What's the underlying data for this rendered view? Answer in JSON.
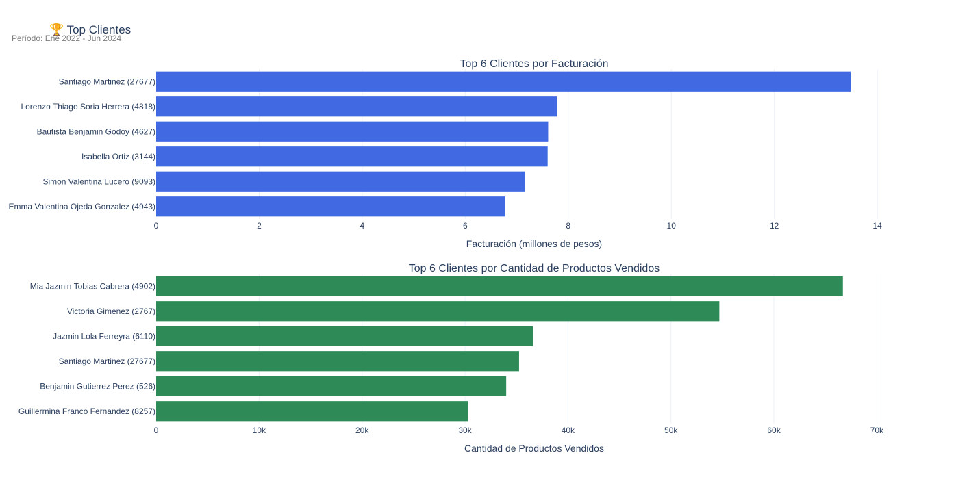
{
  "header": {
    "icon": "trophy-icon",
    "icon_glyph": "🏆",
    "title": "Top Clientes",
    "subtitle": "Período: Ene 2022 - Jun 2024"
  },
  "chart_data": [
    {
      "type": "bar",
      "orientation": "horizontal",
      "title": "Top 6 Clientes por Facturación",
      "xlabel": "Facturación (millones de pesos)",
      "ylabel": "",
      "color": "#4169e1",
      "categories": [
        "Santiago Martinez (27677)",
        "Lorenzo Thiago Soria Herrera (4818)",
        "Bautista Benjamin Godoy (4627)",
        "Isabella Ortiz (3144)",
        "Simon Valentina Lucero (9093)",
        "Emma Valentina Ojeda Gonzalez (4943)"
      ],
      "values": [
        13.48,
        7.78,
        7.61,
        7.6,
        7.16,
        6.78
      ],
      "xlim": [
        0,
        14.65
      ],
      "xticks": [
        0,
        2,
        4,
        6,
        8,
        10,
        12,
        14
      ],
      "xtick_labels": [
        "0",
        "2",
        "4",
        "6",
        "8",
        "10",
        "12",
        "14"
      ],
      "grid": true
    },
    {
      "type": "bar",
      "orientation": "horizontal",
      "title": "Top 6 Clientes por Cantidad de Productos Vendidos",
      "xlabel": "Cantidad de Productos Vendidos",
      "ylabel": "",
      "color": "#2e8b57",
      "categories": [
        "Mia Jazmin Tobias Cabrera (4902)",
        "Victoria Gimenez (2767)",
        "Jazmin Lola Ferreyra (6110)",
        "Santiago Martinez (27677)",
        "Benjamin Gutierrez Perez (526)",
        "Guillermina Franco Fernandez (8257)"
      ],
      "values": [
        66700,
        54700,
        36600,
        35250,
        34000,
        30300
      ],
      "xlim": [
        0,
        73300
      ],
      "xticks": [
        0,
        10000,
        20000,
        30000,
        40000,
        50000,
        60000,
        70000
      ],
      "xtick_labels": [
        "0",
        "10k",
        "20k",
        "30k",
        "40k",
        "50k",
        "60k",
        "70k"
      ],
      "grid": true
    }
  ]
}
